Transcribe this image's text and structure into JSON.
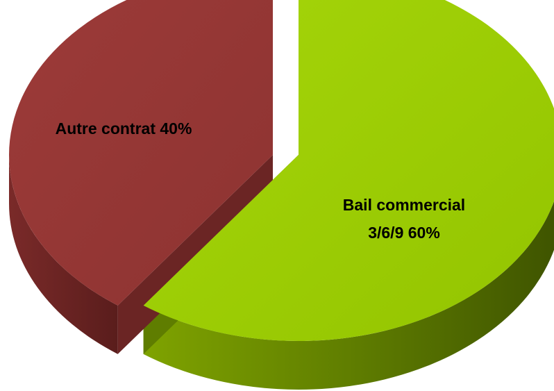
{
  "chart_data": {
    "type": "pie",
    "style": "3d-exploded",
    "title": "",
    "slices": [
      {
        "label_lines": [
          "Bail commercial",
          "3/6/9 60%"
        ],
        "value": 60,
        "color": "#99cc00",
        "side_color": "#5f7d00"
      },
      {
        "label_lines": [
          "Autre contrat 40%"
        ],
        "value": 40,
        "color": "#953735",
        "side_color": "#6b2524"
      }
    ],
    "legend": "none",
    "data_labels": "inside"
  }
}
